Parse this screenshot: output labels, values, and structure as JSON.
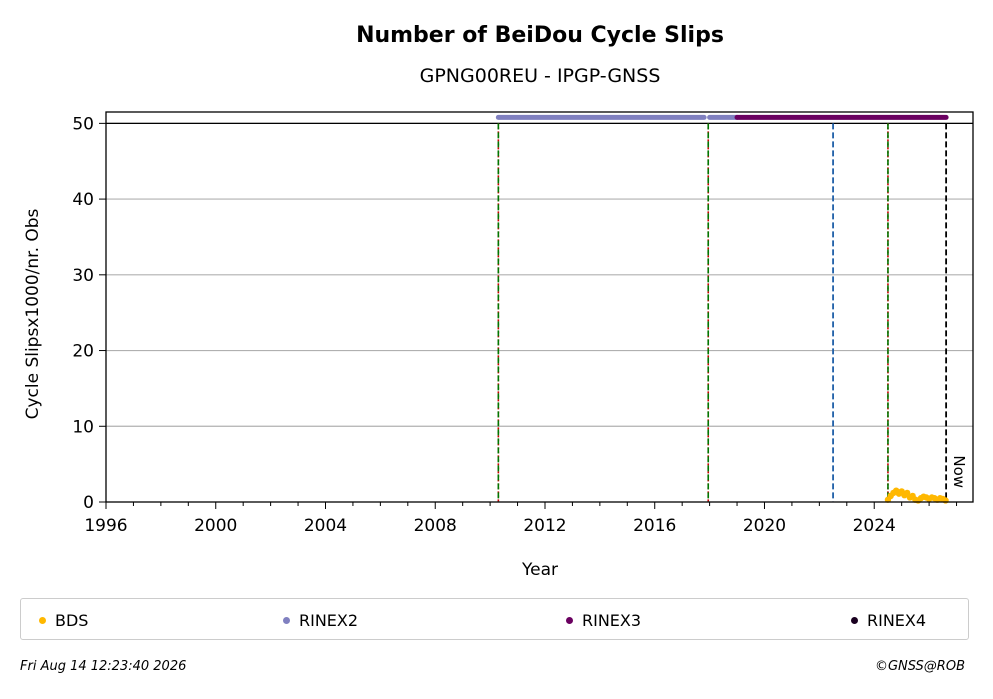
{
  "chart_data": {
    "type": "scatter",
    "title": "Number of BeiDou Cycle Slips",
    "subtitle": "GPNG00REU - IPGP-GNSS",
    "xlabel": "Year",
    "ylabel": "Cycle Slipsx1000/nr. Obs",
    "xlim": [
      1996,
      2027.6
    ],
    "ylim": [
      0,
      51.5
    ],
    "xticks": [
      1996,
      2000,
      2004,
      2008,
      2012,
      2016,
      2020,
      2024
    ],
    "yticks": [
      0,
      10,
      20,
      30,
      40,
      50
    ],
    "grid": "horizontal",
    "reference_line_y": 50,
    "vertical_lines": [
      {
        "x": 2010.3,
        "style": "green-red-dashed"
      },
      {
        "x": 2017.95,
        "style": "green-red-dashed"
      },
      {
        "x": 2022.5,
        "style": "blue-dashed"
      },
      {
        "x": 2024.5,
        "style": "green-red-dashed"
      },
      {
        "x": 2026.62,
        "style": "black-dashed",
        "label": "Now"
      }
    ],
    "series": [
      {
        "name": "BDS",
        "color": "#ffb800",
        "marker": "dot",
        "x": [
          2024.5,
          2024.6,
          2024.7,
          2024.8,
          2024.9,
          2025.0,
          2025.1,
          2025.2,
          2025.3,
          2025.4,
          2025.5,
          2025.6,
          2025.7,
          2025.8,
          2025.9,
          2026.0,
          2026.1,
          2026.2,
          2026.3,
          2026.4,
          2026.5,
          2026.6
        ],
        "y": [
          0.3,
          0.8,
          1.2,
          1.5,
          1.1,
          1.4,
          0.9,
          1.2,
          0.6,
          0.8,
          0.3,
          0.2,
          0.5,
          0.7,
          0.6,
          0.4,
          0.6,
          0.5,
          0.3,
          0.5,
          0.4,
          0.2
        ]
      },
      {
        "name": "RINEX2",
        "color": "#8080c0",
        "marker": "line-at-top",
        "segments": [
          [
            2010.3,
            2017.8
          ],
          [
            2018.0,
            2019.0
          ]
        ]
      },
      {
        "name": "RINEX3",
        "color": "#6a0060",
        "marker": "line-at-top",
        "segments": [
          [
            2019.0,
            2026.62
          ]
        ]
      },
      {
        "name": "RINEX4",
        "color": "#1a0020",
        "marker": "line-at-top",
        "segments": []
      }
    ]
  },
  "footer": {
    "timestamp": "Fri Aug 14 12:23:40 2026",
    "copyright": "©GNSS@ROB"
  }
}
